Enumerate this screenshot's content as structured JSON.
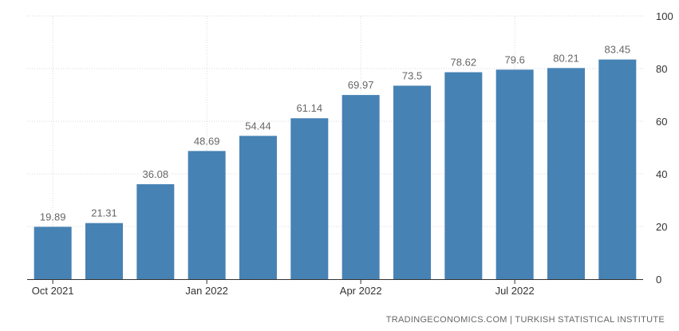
{
  "chart_data": {
    "type": "bar",
    "categories": [
      "Oct 2021",
      "Nov 2021",
      "Dec 2021",
      "Jan 2022",
      "Feb 2022",
      "Mar 2022",
      "Apr 2022",
      "May 2022",
      "Jun 2022",
      "Jul 2022",
      "Aug 2022",
      "Sep 2022"
    ],
    "values": [
      19.89,
      21.31,
      36.08,
      48.69,
      54.44,
      61.14,
      69.97,
      73.5,
      78.62,
      79.6,
      80.21,
      83.45
    ],
    "value_labels": [
      "19.89",
      "21.31",
      "36.08",
      "48.69",
      "54.44",
      "61.14",
      "69.97",
      "73.5",
      "78.62",
      "79.6",
      "80.21",
      "83.45"
    ],
    "x_tick_labels": [
      {
        "category_index": 0,
        "label": "Oct 2021"
      },
      {
        "category_index": 3,
        "label": "Jan 2022"
      },
      {
        "category_index": 6,
        "label": "Apr 2022"
      },
      {
        "category_index": 9,
        "label": "Jul 2022"
      }
    ],
    "y_ticks": [
      0,
      20,
      40,
      60,
      80,
      100
    ],
    "ylim": [
      0,
      100
    ],
    "y_axis_side": "right",
    "grid": true,
    "bar_color": "#4682b4",
    "title": "",
    "xlabel": "",
    "ylabel": ""
  },
  "footer": {
    "source": "TRADINGECONOMICS.COM  |  TURKISH STATISTICAL INSTITUTE"
  }
}
